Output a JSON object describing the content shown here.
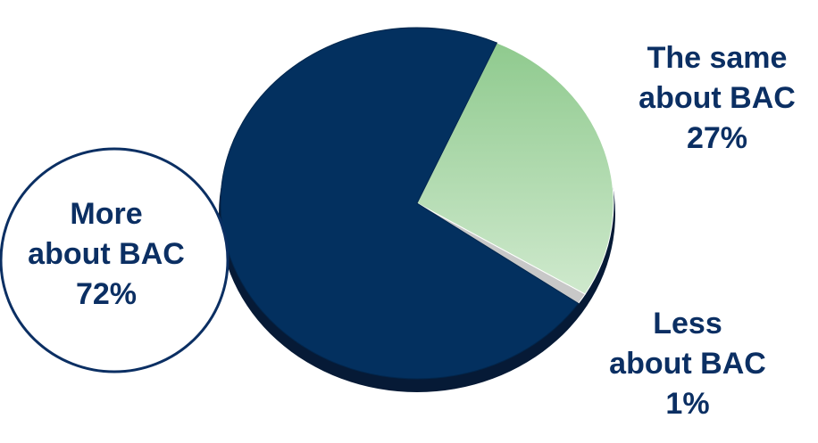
{
  "chart_data": {
    "type": "pie",
    "title": "",
    "slices": [
      {
        "name": "More about BAC",
        "value": 72,
        "label_lines": [
          "More",
          "about BAC",
          "72%"
        ],
        "color": "#03305f"
      },
      {
        "name": "The same about BAC",
        "value": 27,
        "label_lines": [
          "The same",
          "about BAC",
          "27%"
        ],
        "color": "#a9d8a8"
      },
      {
        "name": "Less about BAC",
        "value": 1,
        "label_lines": [
          "Less",
          "about BAC",
          "1%"
        ],
        "color": "#c8c8c8"
      }
    ],
    "style": "3d-tilted",
    "legend": "none",
    "highlighted_slice": "More about BAC"
  }
}
